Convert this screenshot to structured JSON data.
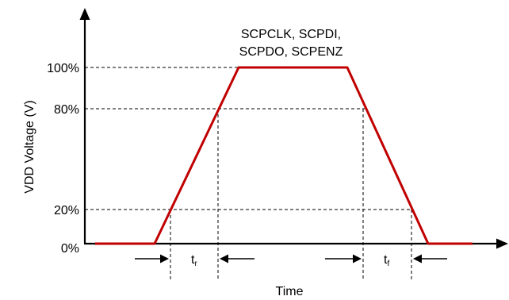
{
  "axes": {
    "y_label": "VDD Voltage (V)",
    "x_label": "Time",
    "y_ticks": [
      "100%",
      "80%",
      "20%",
      "0%"
    ]
  },
  "signal_label": {
    "line1": "SCPCLK, SCPDI,",
    "line2": "SCPDO, SCPENZ"
  },
  "timing": {
    "rise": {
      "base": "t",
      "sub": "r"
    },
    "fall": {
      "base": "t",
      "sub": "f"
    }
  },
  "colors": {
    "waveform": "#c00000",
    "axis": "#000000"
  }
}
